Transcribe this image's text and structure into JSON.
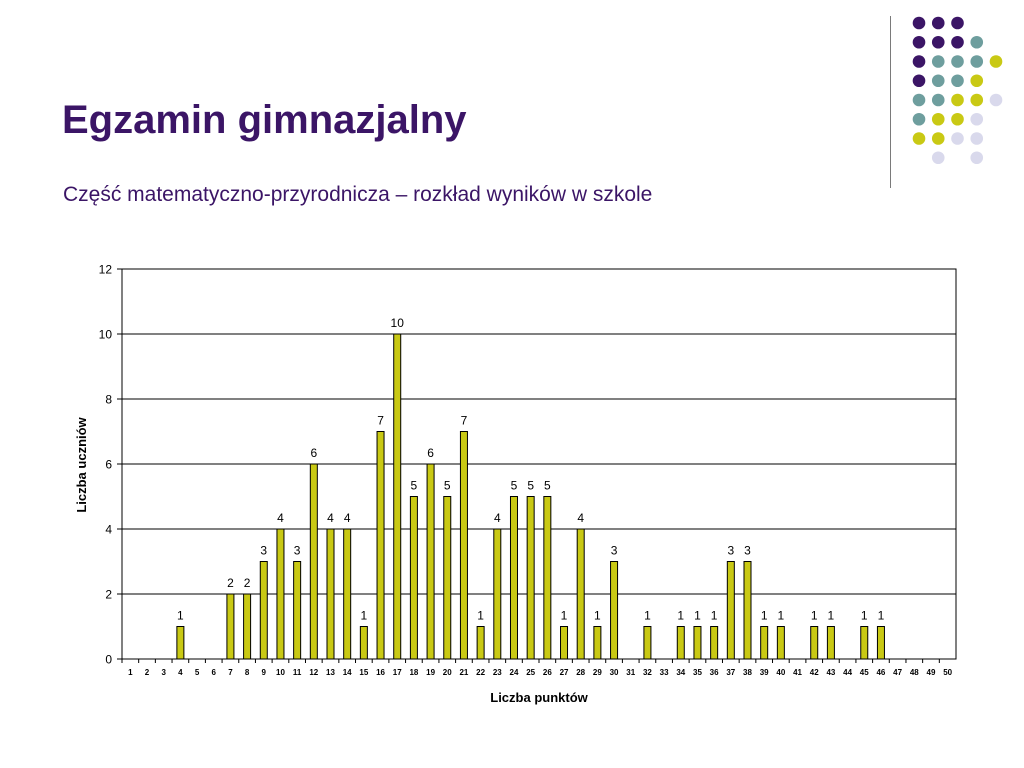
{
  "slide": {
    "title": "Egzamin gimnazjalny",
    "subtitle": "Część matematyczno-przyrodnicza – rozkład wyników w szkole"
  },
  "decoration": {
    "colors": {
      "purple": "#3b1566",
      "teal": "#6e9e9e",
      "yellow": "#c9c914",
      "lavender": "#d9d9ec"
    },
    "dot_grid": [
      [
        "purple",
        "purple",
        "purple",
        null,
        null
      ],
      [
        "purple",
        "purple",
        "purple",
        "teal",
        null
      ],
      [
        "purple",
        "teal",
        "teal",
        "teal",
        "yellow"
      ],
      [
        "purple",
        "teal",
        "teal",
        "yellow",
        null
      ],
      [
        "teal",
        "teal",
        "yellow",
        "yellow",
        "lavender"
      ],
      [
        "teal",
        "yellow",
        "yellow",
        "lavender",
        null
      ],
      [
        "yellow",
        "yellow",
        "lavender",
        "lavender",
        null
      ],
      [
        null,
        "lavender",
        null,
        "lavender",
        null
      ]
    ]
  },
  "chart_data": {
    "type": "bar",
    "title": "",
    "xlabel": "Liczba punktów",
    "ylabel": "Liczba uczniów",
    "ylim": [
      0,
      12
    ],
    "yticks": [
      0,
      2,
      4,
      6,
      8,
      10,
      12
    ],
    "grid": true,
    "bar_color": "#c9c914",
    "categories": [
      "1",
      "2",
      "3",
      "4",
      "5",
      "6",
      "7",
      "8",
      "9",
      "10",
      "11",
      "12",
      "13",
      "14",
      "15",
      "16",
      "17",
      "18",
      "19",
      "20",
      "21",
      "22",
      "23",
      "24",
      "25",
      "26",
      "27",
      "28",
      "29",
      "30",
      "31",
      "32",
      "33",
      "34",
      "35",
      "36",
      "37",
      "38",
      "39",
      "40",
      "41",
      "42",
      "43",
      "44",
      "45",
      "46",
      "47",
      "48",
      "49",
      "50"
    ],
    "values": [
      0,
      0,
      0,
      1,
      0,
      0,
      2,
      2,
      3,
      4,
      3,
      6,
      4,
      4,
      1,
      7,
      10,
      5,
      6,
      5,
      7,
      1,
      4,
      5,
      5,
      5,
      1,
      4,
      1,
      3,
      0,
      1,
      0,
      1,
      1,
      1,
      3,
      3,
      1,
      1,
      0,
      1,
      1,
      0,
      1,
      1,
      0,
      0,
      0,
      0
    ]
  }
}
